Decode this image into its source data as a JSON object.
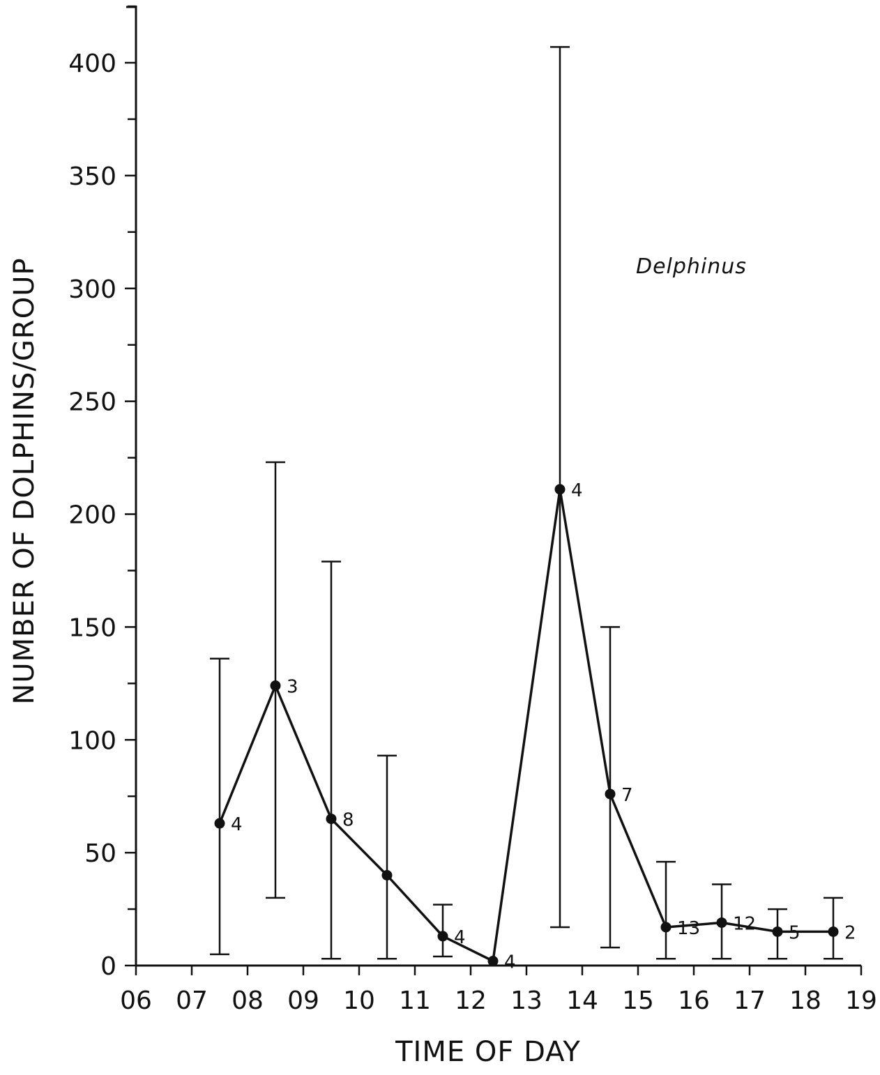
{
  "chart_data": {
    "type": "line",
    "xlabel": "TIME OF DAY",
    "ylabel": "NUMBER OF DOLPHINS/GROUP",
    "annotation": "Delphinus",
    "x_ticks": [
      "06",
      "07",
      "08",
      "09",
      "10",
      "11",
      "12",
      "13",
      "14",
      "15",
      "16",
      "17",
      "18",
      "19"
    ],
    "y_ticks": [
      0,
      50,
      100,
      150,
      200,
      250,
      300,
      350,
      400
    ],
    "xlim": [
      6,
      19
    ],
    "ylim": [
      0,
      425
    ],
    "grid": false,
    "points": [
      {
        "x": 7.5,
        "y": 63,
        "lower": 5,
        "upper": 136,
        "n": "4"
      },
      {
        "x": 8.5,
        "y": 124,
        "lower": 30,
        "upper": 223,
        "n": "3"
      },
      {
        "x": 9.5,
        "y": 65,
        "lower": 3,
        "upper": 179,
        "n": "8"
      },
      {
        "x": 10.5,
        "y": 40,
        "lower": 3,
        "upper": 93,
        "n": ""
      },
      {
        "x": 11.5,
        "y": 13,
        "lower": 4,
        "upper": 27,
        "n": "4"
      },
      {
        "x": 12.4,
        "y": 2,
        "lower": 2,
        "upper": 2,
        "n": "4"
      },
      {
        "x": 13.6,
        "y": 211,
        "lower": 17,
        "upper": 407,
        "n": "4"
      },
      {
        "x": 14.5,
        "y": 76,
        "lower": 8,
        "upper": 150,
        "n": "7"
      },
      {
        "x": 15.5,
        "y": 17,
        "lower": 3,
        "upper": 46,
        "n": "13"
      },
      {
        "x": 16.5,
        "y": 19,
        "lower": 3,
        "upper": 36,
        "n": "12"
      },
      {
        "x": 17.5,
        "y": 15,
        "lower": 3,
        "upper": 25,
        "n": "5"
      },
      {
        "x": 18.5,
        "y": 15,
        "lower": 3,
        "upper": 30,
        "n": "2"
      }
    ],
    "colors": {
      "ink": "#111111",
      "background": "#ffffff"
    }
  }
}
